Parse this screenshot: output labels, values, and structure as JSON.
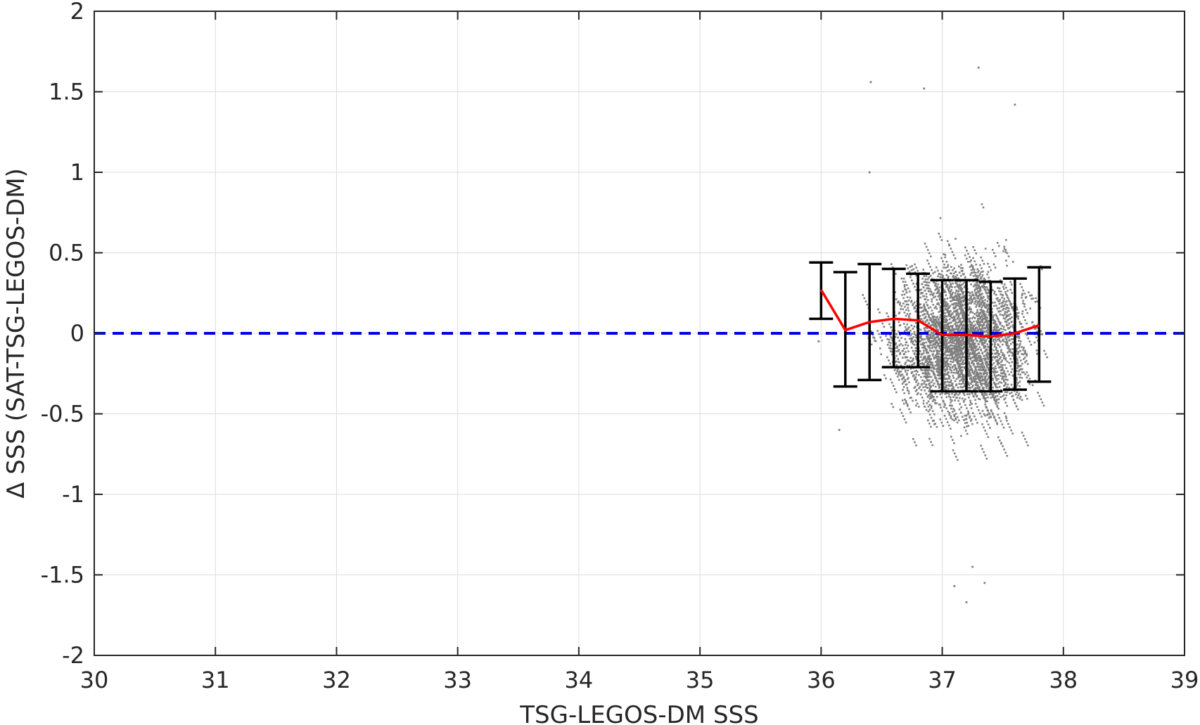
{
  "chart_data": {
    "type": "scatter",
    "title": "",
    "xlabel": "TSG-LEGOS-DM SSS",
    "ylabel": "Δ SSS (SAT-TSG-LEGOS-DM)",
    "xlim": [
      30,
      39
    ],
    "ylim": [
      -2,
      2
    ],
    "x_ticks": [
      30,
      31,
      32,
      33,
      34,
      35,
      36,
      37,
      38,
      39
    ],
    "y_ticks": [
      -2,
      -1.5,
      -1,
      -0.5,
      0,
      0.5,
      1,
      1.5,
      2
    ],
    "x_tick_labels": [
      "30",
      "31",
      "32",
      "33",
      "34",
      "35",
      "36",
      "37",
      "38",
      "39"
    ],
    "y_tick_labels": [
      "-2",
      "-1.5",
      "-1",
      "-0.5",
      "0",
      "0.5",
      "1",
      "1.5",
      "2"
    ],
    "grid": true,
    "scatter_cloud": {
      "color": "#808080",
      "x_range": [
        35.95,
        37.9
      ],
      "y_range": [
        -1.7,
        1.65
      ],
      "center_x": 37.15,
      "center_y": -0.02,
      "spread_y": 0.33,
      "outliers": [
        {
          "x": 36.41,
          "y": 1.56
        },
        {
          "x": 36.85,
          "y": 1.52
        },
        {
          "x": 37.3,
          "y": 1.65
        },
        {
          "x": 37.6,
          "y": 1.42
        },
        {
          "x": 36.4,
          "y": 1.0
        },
        {
          "x": 37.1,
          "y": -1.57
        },
        {
          "x": 37.2,
          "y": -1.67
        },
        {
          "x": 37.35,
          "y": -1.55
        },
        {
          "x": 37.25,
          "y": -1.45
        },
        {
          "x": 36.15,
          "y": -0.6
        },
        {
          "x": 35.98,
          "y": -0.05
        }
      ]
    },
    "reference_line": {
      "y": 0,
      "color": "#0000e6",
      "style": "dashed"
    },
    "mean_line": {
      "color": "#ff0000",
      "x": [
        36.0,
        36.2,
        36.4,
        36.6,
        36.8,
        37.0,
        37.2,
        37.4,
        37.6,
        37.8
      ],
      "y": [
        0.27,
        0.02,
        0.07,
        0.09,
        0.08,
        -0.01,
        -0.01,
        -0.02,
        0.0,
        0.05
      ]
    },
    "error_bars": {
      "color": "#000000",
      "x": [
        36.0,
        36.2,
        36.4,
        36.6,
        36.8,
        37.0,
        37.2,
        37.4,
        37.6,
        37.8
      ],
      "upper": [
        0.44,
        0.38,
        0.43,
        0.4,
        0.37,
        0.33,
        0.33,
        0.32,
        0.34,
        0.41
      ],
      "lower": [
        0.09,
        -0.33,
        -0.29,
        -0.21,
        -0.21,
        -0.36,
        -0.36,
        -0.36,
        -0.35,
        -0.3
      ]
    }
  }
}
